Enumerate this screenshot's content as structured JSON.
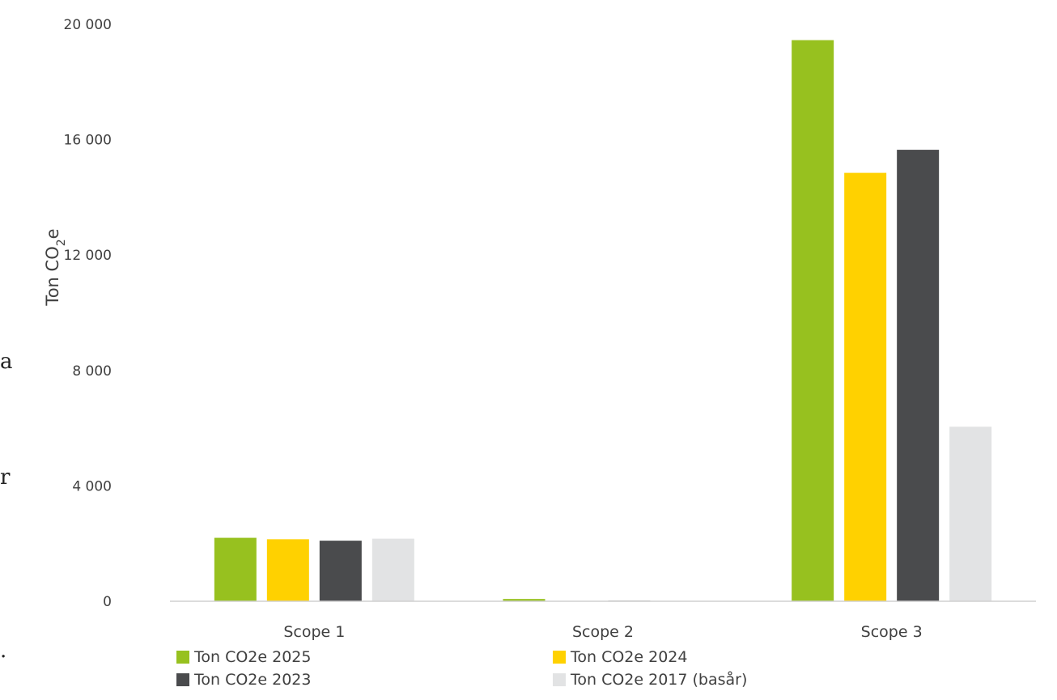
{
  "chart_data": {
    "type": "bar",
    "title": "",
    "xlabel": "",
    "ylabel": "Ton CO",
    "ylabel_subscript": "2",
    "ylabel_suffix": "e",
    "ylim": [
      0,
      20000
    ],
    "yticks": [
      0,
      4000,
      8000,
      12000,
      16000,
      20000
    ],
    "ytick_labels": [
      "0",
      "4 000",
      "8 000",
      "12 000",
      "16 000",
      "20 000"
    ],
    "grid": false,
    "legend_position": "bottom",
    "categories": [
      "Scope 1",
      "Scope 2",
      "Scope 3"
    ],
    "series": [
      {
        "name": "Ton CO2e 2025",
        "color": "#97c11f",
        "values": [
          2200,
          80,
          19450
        ]
      },
      {
        "name": "Ton CO2e 2024",
        "color": "#ffd100",
        "values": [
          2150,
          10,
          14850
        ]
      },
      {
        "name": "Ton CO2e 2023",
        "color": "#4a4b4d",
        "values": [
          2100,
          20,
          15650
        ]
      },
      {
        "name": "Ton CO2e 2017 (basår)",
        "color": "#e2e3e4",
        "values": [
          2170,
          15,
          6050
        ]
      }
    ]
  },
  "left_margin_fragments": [
    "a",
    "r",
    "."
  ]
}
